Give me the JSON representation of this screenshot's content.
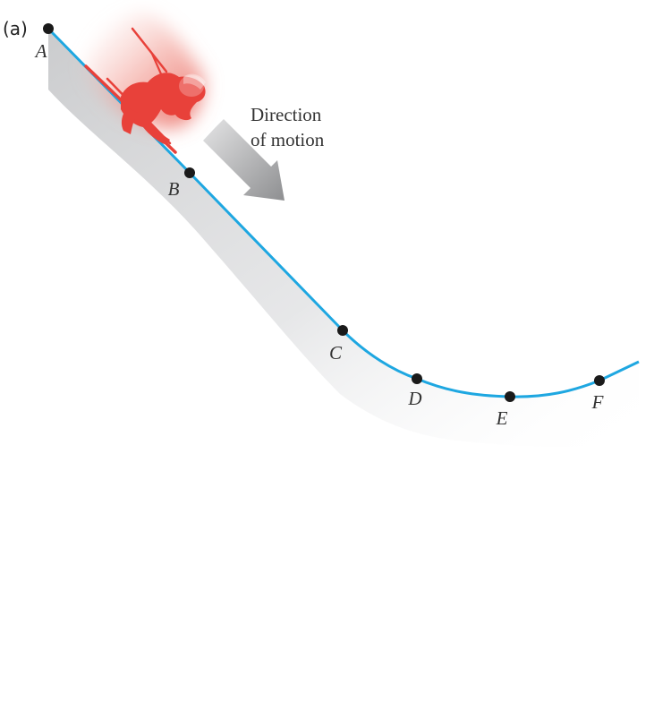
{
  "figure": {
    "panel_label": "(a)",
    "direction_caption": [
      "Direction",
      "of motion"
    ],
    "points": [
      {
        "id": "A",
        "label": "A"
      },
      {
        "id": "B",
        "label": "B"
      },
      {
        "id": "C",
        "label": "C"
      },
      {
        "id": "D",
        "label": "D"
      },
      {
        "id": "E",
        "label": "E"
      },
      {
        "id": "F",
        "label": "F"
      }
    ],
    "skier": "skier-figure",
    "colors": {
      "track": "#1ea7e1",
      "skier": "#e8413a",
      "motion_glow": "#f08a80",
      "arrow": "#9a9b9d",
      "point": "#1a1a1a"
    }
  }
}
